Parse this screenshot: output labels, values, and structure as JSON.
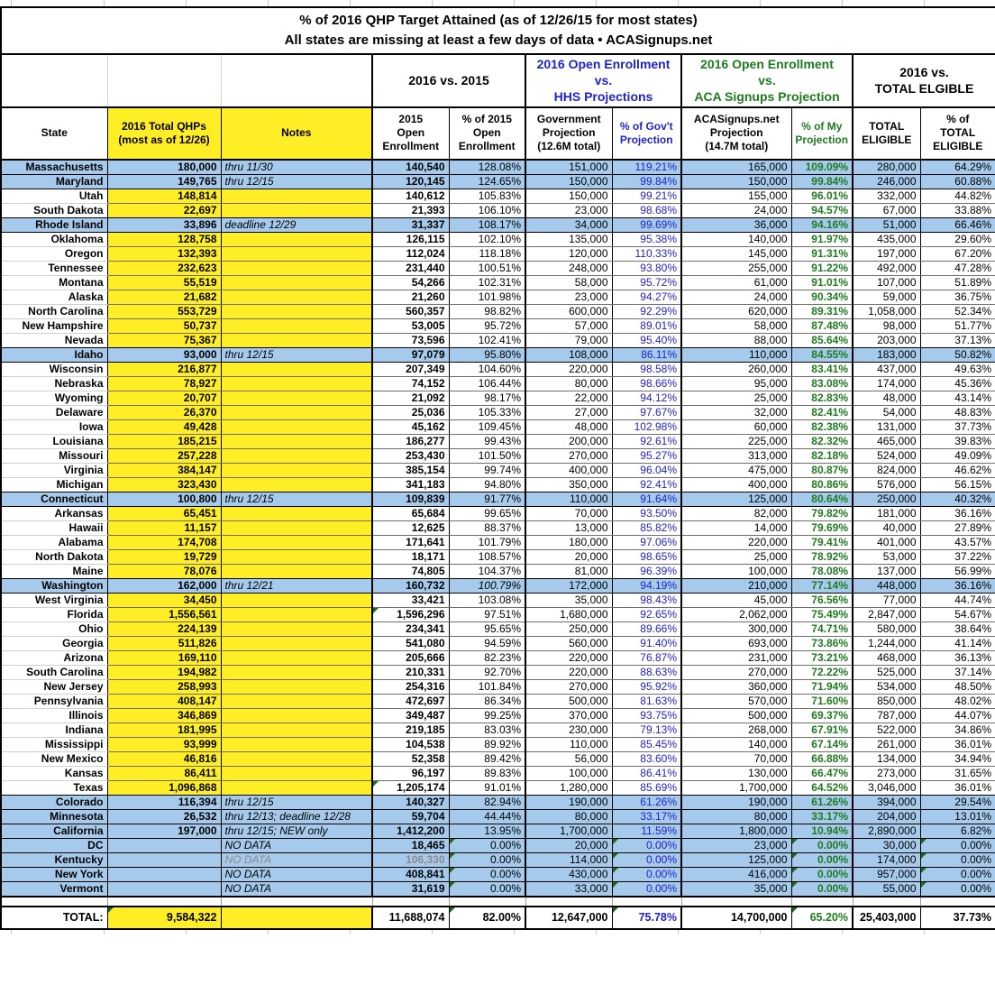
{
  "title": {
    "line1": "% of 2016 QHP Target Attained (as of 12/26/15 for most states)",
    "line2": "All states are missing at least a few days of data • ACASignups.net"
  },
  "band": {
    "vs2015": "2016 vs. 2015",
    "hhs": "2016 Open Enrollment\nvs.\nHHS Projections",
    "acas": "2016 Open Enrollment\nvs.\nACA Signups Projection",
    "eligible": "2016 vs.\nTOTAL ELGIBLE"
  },
  "columns": {
    "state": "State",
    "qhp": "2016 Total QHPs\n(most as of 12/26)",
    "note": "Notes",
    "oe2015": "2015\nOpen\nEnrollment",
    "pct2015": "% of 2015\nOpen\nEnrollment",
    "gov": "Government\nProjection\n(12.6M total)",
    "pctgov": "% of Gov't\nProjection",
    "acas": "ACASignups.net\nProjection\n(14.7M total)",
    "pctmy": "% of My\nProjection",
    "elig": "TOTAL\nELIGIBLE",
    "pctelig": "% of\nTOTAL\nELIGIBLE"
  },
  "rows": [
    {
      "state": "Massachusetts",
      "qhp": "180,000",
      "note": "thru 11/30",
      "oe2015": "140,540",
      "pct2015": "128.08%",
      "gov": "151,000",
      "pctgov": "119.21%",
      "acas": "165,000",
      "pctmy": "109.09%",
      "elig": "280,000",
      "pctelig": "64.29%",
      "blue": true
    },
    {
      "state": "Maryland",
      "qhp": "149,765",
      "note": "thru 12/15",
      "oe2015": "120,145",
      "pct2015": "124.65%",
      "gov": "150,000",
      "pctgov": "99.84%",
      "acas": "150,000",
      "pctmy": "99.84%",
      "elig": "246,000",
      "pctelig": "60.88%",
      "blue": true
    },
    {
      "state": "Utah",
      "qhp": "148,814",
      "note": "",
      "oe2015": "140,612",
      "pct2015": "105.83%",
      "gov": "150,000",
      "pctgov": "99.21%",
      "acas": "155,000",
      "pctmy": "96.01%",
      "elig": "332,000",
      "pctelig": "44.82%"
    },
    {
      "state": "South Dakota",
      "qhp": "22,697",
      "note": "",
      "oe2015": "21,393",
      "pct2015": "106.10%",
      "gov": "23,000",
      "pctgov": "98.68%",
      "acas": "24,000",
      "pctmy": "94.57%",
      "elig": "67,000",
      "pctelig": "33.88%"
    },
    {
      "state": "Rhode Island",
      "qhp": "33,896",
      "note": "deadline 12/29",
      "oe2015": "31,337",
      "pct2015": "108.17%",
      "gov": "34,000",
      "pctgov": "99.69%",
      "acas": "36,000",
      "pctmy": "94.16%",
      "elig": "51,000",
      "pctelig": "66.46%",
      "blue": true
    },
    {
      "state": "Oklahoma",
      "qhp": "128,758",
      "note": "",
      "oe2015": "126,115",
      "pct2015": "102.10%",
      "gov": "135,000",
      "pctgov": "95.38%",
      "acas": "140,000",
      "pctmy": "91.97%",
      "elig": "435,000",
      "pctelig": "29.60%"
    },
    {
      "state": "Oregon",
      "qhp": "132,393",
      "note": "",
      "oe2015": "112,024",
      "pct2015": "118.18%",
      "gov": "120,000",
      "pctgov": "110.33%",
      "acas": "145,000",
      "pctmy": "91.31%",
      "elig": "197,000",
      "pctelig": "67.20%"
    },
    {
      "state": "Tennessee",
      "qhp": "232,623",
      "note": "",
      "oe2015": "231,440",
      "pct2015": "100.51%",
      "gov": "248,000",
      "pctgov": "93.80%",
      "acas": "255,000",
      "pctmy": "91.22%",
      "elig": "492,000",
      "pctelig": "47.28%"
    },
    {
      "state": "Montana",
      "qhp": "55,519",
      "note": "",
      "oe2015": "54,266",
      "pct2015": "102.31%",
      "gov": "58,000",
      "pctgov": "95.72%",
      "acas": "61,000",
      "pctmy": "91.01%",
      "elig": "107,000",
      "pctelig": "51.89%"
    },
    {
      "state": "Alaska",
      "qhp": "21,682",
      "note": "",
      "oe2015": "21,260",
      "pct2015": "101.98%",
      "gov": "23,000",
      "pctgov": "94.27%",
      "acas": "24,000",
      "pctmy": "90.34%",
      "elig": "59,000",
      "pctelig": "36.75%"
    },
    {
      "state": "North Carolina",
      "qhp": "553,729",
      "note": "",
      "oe2015": "560,357",
      "pct2015": "98.82%",
      "gov": "600,000",
      "pctgov": "92.29%",
      "acas": "620,000",
      "pctmy": "89.31%",
      "elig": "1,058,000",
      "pctelig": "52.34%"
    },
    {
      "state": "New Hampshire",
      "qhp": "50,737",
      "note": "",
      "oe2015": "53,005",
      "pct2015": "95.72%",
      "gov": "57,000",
      "pctgov": "89.01%",
      "acas": "58,000",
      "pctmy": "87.48%",
      "elig": "98,000",
      "pctelig": "51.77%"
    },
    {
      "state": "Nevada",
      "qhp": "75,367",
      "note": "",
      "oe2015": "73,596",
      "pct2015": "102.41%",
      "gov": "79,000",
      "pctgov": "95.40%",
      "acas": "88,000",
      "pctmy": "85.64%",
      "elig": "203,000",
      "pctelig": "37.13%"
    },
    {
      "state": "Idaho",
      "qhp": "93,000",
      "note": "thru 12/15",
      "oe2015": "97,079",
      "pct2015": "95.80%",
      "gov": "108,000",
      "pctgov": "86.11%",
      "acas": "110,000",
      "pctmy": "84.55%",
      "elig": "183,000",
      "pctelig": "50.82%",
      "blue": true
    },
    {
      "state": "Wisconsin",
      "qhp": "216,877",
      "note": "",
      "oe2015": "207,349",
      "pct2015": "104.60%",
      "gov": "220,000",
      "pctgov": "98.58%",
      "acas": "260,000",
      "pctmy": "83.41%",
      "elig": "437,000",
      "pctelig": "49.63%"
    },
    {
      "state": "Nebraska",
      "qhp": "78,927",
      "note": "",
      "oe2015": "74,152",
      "pct2015": "106.44%",
      "gov": "80,000",
      "pctgov": "98.66%",
      "acas": "95,000",
      "pctmy": "83.08%",
      "elig": "174,000",
      "pctelig": "45.36%"
    },
    {
      "state": "Wyoming",
      "qhp": "20,707",
      "note": "",
      "oe2015": "21,092",
      "pct2015": "98.17%",
      "gov": "22,000",
      "pctgov": "94.12%",
      "acas": "25,000",
      "pctmy": "82.83%",
      "elig": "48,000",
      "pctelig": "43.14%"
    },
    {
      "state": "Delaware",
      "qhp": "26,370",
      "note": "",
      "oe2015": "25,036",
      "pct2015": "105.33%",
      "gov": "27,000",
      "pctgov": "97.67%",
      "acas": "32,000",
      "pctmy": "82.41%",
      "elig": "54,000",
      "pctelig": "48.83%"
    },
    {
      "state": "Iowa",
      "qhp": "49,428",
      "note": "",
      "oe2015": "45,162",
      "pct2015": "109.45%",
      "gov": "48,000",
      "pctgov": "102.98%",
      "acas": "60,000",
      "pctmy": "82.38%",
      "elig": "131,000",
      "pctelig": "37.73%"
    },
    {
      "state": "Louisiana",
      "qhp": "185,215",
      "note": "",
      "oe2015": "186,277",
      "pct2015": "99.43%",
      "gov": "200,000",
      "pctgov": "92.61%",
      "acas": "225,000",
      "pctmy": "82.32%",
      "elig": "465,000",
      "pctelig": "39.83%"
    },
    {
      "state": "Missouri",
      "qhp": "257,228",
      "note": "",
      "oe2015": "253,430",
      "pct2015": "101.50%",
      "gov": "270,000",
      "pctgov": "95.27%",
      "acas": "313,000",
      "pctmy": "82.18%",
      "elig": "524,000",
      "pctelig": "49.09%"
    },
    {
      "state": "Virginia",
      "qhp": "384,147",
      "note": "",
      "oe2015": "385,154",
      "pct2015": "99.74%",
      "gov": "400,000",
      "pctgov": "96.04%",
      "acas": "475,000",
      "pctmy": "80.87%",
      "elig": "824,000",
      "pctelig": "46.62%"
    },
    {
      "state": "Michigan",
      "qhp": "323,430",
      "note": "",
      "oe2015": "341,183",
      "pct2015": "94.80%",
      "gov": "350,000",
      "pctgov": "92.41%",
      "acas": "400,000",
      "pctmy": "80.86%",
      "elig": "576,000",
      "pctelig": "56.15%"
    },
    {
      "state": "Connecticut",
      "qhp": "100,800",
      "note": "thru 12/15",
      "oe2015": "109,839",
      "pct2015": "91.77%",
      "gov": "110,000",
      "pctgov": "91.64%",
      "acas": "125,000",
      "pctmy": "80.64%",
      "elig": "250,000",
      "pctelig": "40.32%",
      "blue": true
    },
    {
      "state": "Arkansas",
      "qhp": "65,451",
      "note": "",
      "oe2015": "65,684",
      "pct2015": "99.65%",
      "gov": "70,000",
      "pctgov": "93.50%",
      "acas": "82,000",
      "pctmy": "79.82%",
      "elig": "181,000",
      "pctelig": "36.16%"
    },
    {
      "state": "Hawaii",
      "qhp": "11,157",
      "note": "",
      "oe2015": "12,625",
      "pct2015": "88.37%",
      "gov": "13,000",
      "pctgov": "85.82%",
      "acas": "14,000",
      "pctmy": "79.69%",
      "elig": "40,000",
      "pctelig": "27.89%"
    },
    {
      "state": "Alabama",
      "qhp": "174,708",
      "note": "",
      "oe2015": "171,641",
      "pct2015": "101.79%",
      "gov": "180,000",
      "pctgov": "97.06%",
      "acas": "220,000",
      "pctmy": "79.41%",
      "elig": "401,000",
      "pctelig": "43.57%"
    },
    {
      "state": "North Dakota",
      "qhp": "19,729",
      "note": "",
      "oe2015": "18,171",
      "pct2015": "108.57%",
      "gov": "20,000",
      "pctgov": "98.65%",
      "acas": "25,000",
      "pctmy": "78.92%",
      "elig": "53,000",
      "pctelig": "37.22%"
    },
    {
      "state": "Maine",
      "qhp": "78,076",
      "note": "",
      "oe2015": "74,805",
      "pct2015": "104.37%",
      "gov": "81,000",
      "pctgov": "96.39%",
      "acas": "100,000",
      "pctmy": "78.08%",
      "elig": "137,000",
      "pctelig": "56.99%"
    },
    {
      "state": "Washington",
      "qhp": "162,000",
      "note": "thru 12/21",
      "oe2015": "160,732",
      "pct2015": "100.79%",
      "gov": "172,000",
      "pctgov": "94.19%",
      "acas": "210,000",
      "pctmy": "77.14%",
      "elig": "448,000",
      "pctelig": "36.16%",
      "blue": true,
      "italics": [
        "pct2015"
      ]
    },
    {
      "state": "West Virginia",
      "qhp": "34,450",
      "note": "",
      "oe2015": "33,421",
      "pct2015": "103.08%",
      "gov": "35,000",
      "pctgov": "98.43%",
      "acas": "45,000",
      "pctmy": "76.56%",
      "elig": "77,000",
      "pctelig": "44.74%"
    },
    {
      "state": "Florida",
      "qhp": "1,556,561",
      "note": "",
      "oe2015": "1,596,296",
      "pct2015": "97.51%",
      "gov": "1,680,000",
      "pctgov": "92.65%",
      "acas": "2,062,000",
      "pctmy": "75.49%",
      "elig": "2,847,000",
      "pctelig": "54.67%",
      "flags": [
        "oe2015"
      ]
    },
    {
      "state": "Ohio",
      "qhp": "224,139",
      "note": "",
      "oe2015": "234,341",
      "pct2015": "95.65%",
      "gov": "250,000",
      "pctgov": "89.66%",
      "acas": "300,000",
      "pctmy": "74.71%",
      "elig": "580,000",
      "pctelig": "38.64%"
    },
    {
      "state": "Georgia",
      "qhp": "511,826",
      "note": "",
      "oe2015": "541,080",
      "pct2015": "94.59%",
      "gov": "560,000",
      "pctgov": "91.40%",
      "acas": "693,000",
      "pctmy": "73.86%",
      "elig": "1,244,000",
      "pctelig": "41.14%"
    },
    {
      "state": "Arizona",
      "qhp": "169,110",
      "note": "",
      "oe2015": "205,666",
      "pct2015": "82.23%",
      "gov": "220,000",
      "pctgov": "76.87%",
      "acas": "231,000",
      "pctmy": "73.21%",
      "elig": "468,000",
      "pctelig": "36.13%"
    },
    {
      "state": "South Carolina",
      "qhp": "194,982",
      "note": "",
      "oe2015": "210,331",
      "pct2015": "92.70%",
      "gov": "220,000",
      "pctgov": "88.63%",
      "acas": "270,000",
      "pctmy": "72.22%",
      "elig": "525,000",
      "pctelig": "37.14%"
    },
    {
      "state": "New Jersey",
      "qhp": "258,993",
      "note": "",
      "oe2015": "254,316",
      "pct2015": "101.84%",
      "gov": "270,000",
      "pctgov": "95.92%",
      "acas": "360,000",
      "pctmy": "71.94%",
      "elig": "534,000",
      "pctelig": "48.50%"
    },
    {
      "state": "Pennsylvania",
      "qhp": "408,147",
      "note": "",
      "oe2015": "472,697",
      "pct2015": "86.34%",
      "gov": "500,000",
      "pctgov": "81.63%",
      "acas": "570,000",
      "pctmy": "71.60%",
      "elig": "850,000",
      "pctelig": "48.02%"
    },
    {
      "state": "Illinois",
      "qhp": "346,869",
      "note": "",
      "oe2015": "349,487",
      "pct2015": "99.25%",
      "gov": "370,000",
      "pctgov": "93.75%",
      "acas": "500,000",
      "pctmy": "69.37%",
      "elig": "787,000",
      "pctelig": "44.07%"
    },
    {
      "state": "Indiana",
      "qhp": "181,995",
      "note": "",
      "oe2015": "219,185",
      "pct2015": "83.03%",
      "gov": "230,000",
      "pctgov": "79.13%",
      "acas": "268,000",
      "pctmy": "67.91%",
      "elig": "522,000",
      "pctelig": "34.86%"
    },
    {
      "state": "Mississippi",
      "qhp": "93,999",
      "note": "",
      "oe2015": "104,538",
      "pct2015": "89.92%",
      "gov": "110,000",
      "pctgov": "85.45%",
      "acas": "140,000",
      "pctmy": "67.14%",
      "elig": "261,000",
      "pctelig": "36.01%"
    },
    {
      "state": "New Mexico",
      "qhp": "46,816",
      "note": "",
      "oe2015": "52,358",
      "pct2015": "89.42%",
      "gov": "56,000",
      "pctgov": "83.60%",
      "acas": "70,000",
      "pctmy": "66.88%",
      "elig": "134,000",
      "pctelig": "34.94%"
    },
    {
      "state": "Kansas",
      "qhp": "86,411",
      "note": "",
      "oe2015": "96,197",
      "pct2015": "89.83%",
      "gov": "100,000",
      "pctgov": "86.41%",
      "acas": "130,000",
      "pctmy": "66.47%",
      "elig": "273,000",
      "pctelig": "31.65%"
    },
    {
      "state": "Texas",
      "qhp": "1,096,868",
      "note": "",
      "oe2015": "1,205,174",
      "pct2015": "91.01%",
      "gov": "1,280,000",
      "pctgov": "85.69%",
      "acas": "1,700,000",
      "pctmy": "64.52%",
      "elig": "3,046,000",
      "pctelig": "36.01%",
      "flags": [
        "oe2015"
      ]
    },
    {
      "state": "Colorado",
      "qhp": "116,394",
      "note": "thru 12/15",
      "oe2015": "140,327",
      "pct2015": "82.94%",
      "gov": "190,000",
      "pctgov": "61.26%",
      "acas": "190,000",
      "pctmy": "61.26%",
      "elig": "394,000",
      "pctelig": "29.54%",
      "blue": true
    },
    {
      "state": "Minnesota",
      "qhp": "26,532",
      "note": "thru 12/13; deadline 12/28",
      "oe2015": "59,704",
      "pct2015": "44.44%",
      "gov": "80,000",
      "pctgov": "33.17%",
      "acas": "80,000",
      "pctmy": "33.17%",
      "elig": "204,000",
      "pctelig": "13.01%",
      "blue": true
    },
    {
      "state": "California",
      "qhp": "197,000",
      "note": "thru 12/15; NEW only",
      "oe2015": "1,412,200",
      "pct2015": "13.95%",
      "gov": "1,700,000",
      "pctgov": "11.59%",
      "acas": "1,800,000",
      "pctmy": "10.94%",
      "elig": "2,890,000",
      "pctelig": "6.82%",
      "blue": true
    },
    {
      "state": "DC",
      "qhp": "",
      "note": "NO DATA",
      "oe2015": "18,465",
      "pct2015": "0.00%",
      "gov": "20,000",
      "pctgov": "0.00%",
      "acas": "23,000",
      "pctmy": "0.00%",
      "elig": "30,000",
      "pctelig": "0.00%",
      "blue": true,
      "flags": [
        "pct2015",
        "pctgov",
        "pctmy",
        "pctelig"
      ]
    },
    {
      "state": "Kentucky",
      "qhp": "",
      "note": "NO DATA",
      "oe2015": "106,330",
      "pct2015": "0.00%",
      "gov": "114,000",
      "pctgov": "0.00%",
      "acas": "125,000",
      "pctmy": "0.00%",
      "elig": "174,000",
      "pctelig": "0.00%",
      "blue": true,
      "muted": true,
      "flags": [
        "pct2015",
        "pctgov",
        "pctmy",
        "pctelig"
      ]
    },
    {
      "state": "New York",
      "qhp": "",
      "note": "NO DATA",
      "oe2015": "408,841",
      "pct2015": "0.00%",
      "gov": "430,000",
      "pctgov": "0.00%",
      "acas": "416,000",
      "pctmy": "0.00%",
      "elig": "957,000",
      "pctelig": "0.00%",
      "blue": true,
      "flags": [
        "pct2015",
        "pctgov",
        "pctmy",
        "pctelig"
      ]
    },
    {
      "state": "Vermont",
      "qhp": "",
      "note": "NO DATA",
      "oe2015": "31,619",
      "pct2015": "0.00%",
      "gov": "33,000",
      "pctgov": "0.00%",
      "acas": "35,000",
      "pctmy": "0.00%",
      "elig": "55,000",
      "pctelig": "0.00%",
      "blue": true,
      "flags": [
        "pct2015",
        "pctgov",
        "pctmy",
        "pctelig"
      ]
    }
  ],
  "total": {
    "state": "TOTAL:",
    "qhp": "9,584,322",
    "note": "",
    "oe2015": "11,688,074",
    "pct2015": "82.00%",
    "gov": "12,647,000",
    "pctgov": "75.78%",
    "acas": "14,700,000",
    "pctmy": "65.20%",
    "elig": "25,403,000",
    "pctelig": "37.73%",
    "flags": [
      "qhp",
      "pct2015",
      "pctgov",
      "pctmy"
    ]
  },
  "colors": {
    "row_blue": "#A6CAEC",
    "cell_yellow": "#FFEE26",
    "text_blue": "#2222CC",
    "text_green": "#1E7B1E",
    "flag_green": "#1D6B1D",
    "grid_grey": "#C9C9C9"
  }
}
